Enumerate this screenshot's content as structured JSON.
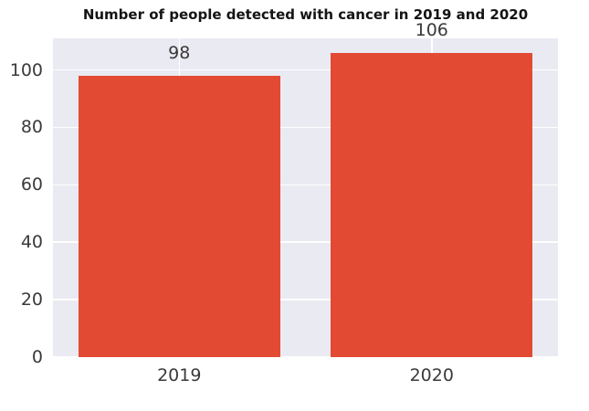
{
  "chart_data": {
    "type": "bar",
    "title": "Number of people detected with cancer in 2019 and 2020",
    "categories": [
      "2019",
      "2020"
    ],
    "values": [
      98,
      106
    ],
    "value_labels": [
      "98",
      "106"
    ],
    "xlabel": "",
    "ylabel": "",
    "ylim": [
      0,
      111
    ],
    "yticks": [
      0,
      20,
      40,
      60,
      80,
      100
    ],
    "grid": true,
    "legend": false,
    "bar_color": "#e24a33",
    "plot_background": "#eaeaf2",
    "grid_color": "#ffffff",
    "text_color": "#3a3a3a",
    "title_color": "#141414"
  }
}
